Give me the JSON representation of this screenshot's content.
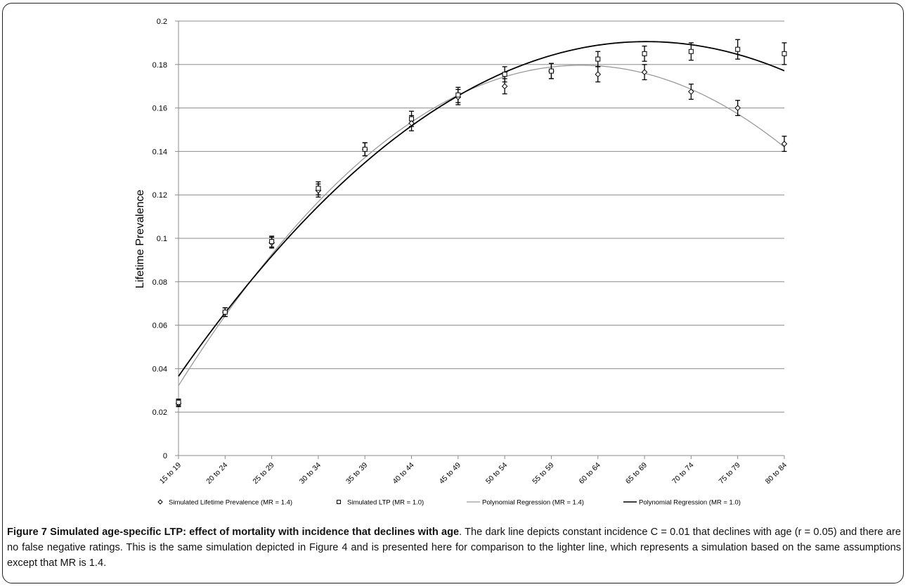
{
  "caption": {
    "label": "Figure 7 Simulated age-specific LTP: effect of mortality with incidence that declines with age",
    "text": ". The dark line depicts constant incidence C = 0.01 that declines with age (r = 0.05) and there are no false negative ratings. This is the same simulation depicted in Figure 4 and is presented here for comparison to the lighter line, which represents a simulation based on the same assumptions except that MR is 1.4."
  },
  "colors": {
    "dark_line": "#000000",
    "light_line": "#9a9a9a",
    "grid": "#8c8c8c",
    "axis": "#8c8c8c"
  },
  "chart_data": {
    "type": "line",
    "title": "",
    "xlabel": "",
    "ylabel": "Lifetime Prevalence",
    "ylim": [
      0,
      0.2
    ],
    "yticks": [
      "0",
      "0.02",
      "0.04",
      "0.06",
      "0.08",
      "0.1",
      "0.12",
      "0.14",
      "0.16",
      "0.18",
      "0.2"
    ],
    "grid": "horizontal",
    "legend_position": "bottom",
    "categories": [
      "15 to 19",
      "20 to 24",
      "25 to 29",
      "30 to 34",
      "35 to 39",
      "40 to 44",
      "45 to 49",
      "50 to 54",
      "55 to 59",
      "60 to 64",
      "65 to 69",
      "70 to 74",
      "75 to 79",
      "80 to 84"
    ],
    "series": [
      {
        "name": "Simulated Lifetime Prevalence (MR = 1.4)",
        "marker": "diamond",
        "values": [
          0.024,
          0.066,
          0.098,
          0.122,
          0.141,
          0.153,
          0.165,
          0.17,
          0.177,
          0.1755,
          0.1765,
          0.1675,
          0.16,
          0.1435
        ],
        "error": [
          0.0015,
          0.002,
          0.0025,
          0.003,
          0.003,
          0.0035,
          0.0035,
          0.0035,
          0.0035,
          0.0035,
          0.0035,
          0.0035,
          0.0035,
          0.0035
        ]
      },
      {
        "name": "Simulated LTP (MR = 1.0)",
        "marker": "square",
        "values": [
          0.0245,
          0.066,
          0.0985,
          0.123,
          0.141,
          0.155,
          0.166,
          0.1755,
          0.177,
          0.1825,
          0.185,
          0.186,
          0.187,
          0.185
        ],
        "error": [
          0.0015,
          0.002,
          0.0025,
          0.003,
          0.003,
          0.0035,
          0.0035,
          0.0035,
          0.0035,
          0.0035,
          0.0035,
          0.004,
          0.0045,
          0.005
        ]
      },
      {
        "name": "Polynomial Regression (MR = 1.4)",
        "line": "light",
        "fit_of": "Simulated Lifetime Prevalence (MR = 1.4)"
      },
      {
        "name": "Polynomial Regression (MR = 1.0)",
        "line": "dark",
        "fit_of": "Simulated LTP (MR = 1.0)"
      }
    ]
  }
}
